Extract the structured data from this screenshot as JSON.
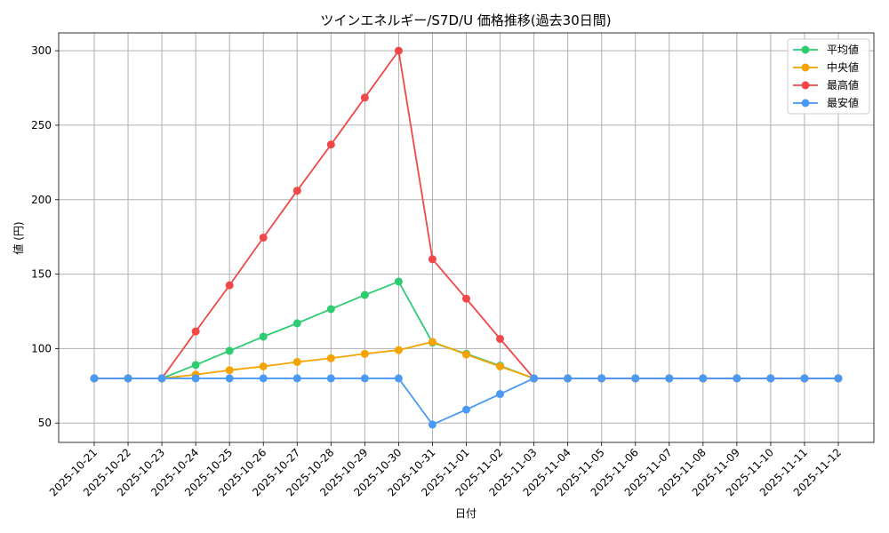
{
  "chart_data": {
    "type": "line",
    "title": "ツインエネルギー/S7D/U 価格推移(過去30日間)",
    "xlabel": "日付",
    "ylabel": "値 (円)",
    "ylim": [
      37,
      312
    ],
    "yticks": [
      50,
      100,
      150,
      200,
      250,
      300
    ],
    "grid": true,
    "legend_position": "top-right",
    "categories": [
      "2025-10-21",
      "2025-10-22",
      "2025-10-23",
      "2025-10-24",
      "2025-10-25",
      "2025-10-26",
      "2025-10-27",
      "2025-10-28",
      "2025-10-29",
      "2025-10-30",
      "2025-10-31",
      "2025-11-01",
      "2025-11-02",
      "2025-11-03",
      "2025-11-04",
      "2025-11-05",
      "2025-11-06",
      "2025-11-07",
      "2025-11-08",
      "2025-11-09",
      "2025-11-10",
      "2025-11-11",
      "2025-11-12"
    ],
    "series": [
      {
        "name": "平均値",
        "color": "#2ecc71",
        "values": [
          80,
          80,
          80,
          89,
          98.5,
          108,
          117,
          126.5,
          136,
          145,
          104,
          96.5,
          88.5,
          80,
          80,
          80,
          80,
          80,
          80,
          80,
          80,
          80,
          80
        ]
      },
      {
        "name": "中央値",
        "color": "#f5a300",
        "values": [
          80,
          80,
          80,
          82.5,
          85.5,
          88,
          91,
          93.5,
          96.5,
          99,
          104.5,
          96,
          88,
          80,
          80,
          80,
          80,
          80,
          80,
          80,
          80,
          80,
          80
        ]
      },
      {
        "name": "最高値",
        "color": "#f04848",
        "values": [
          80,
          80,
          80,
          111.5,
          142.5,
          174.5,
          206,
          237,
          268.5,
          300,
          160,
          133.5,
          106.5,
          80,
          80,
          80,
          80,
          80,
          80,
          80,
          80,
          80,
          80
        ]
      },
      {
        "name": "最安値",
        "color": "#4a9af5",
        "values": [
          80,
          80,
          80,
          80,
          80,
          80,
          80,
          80,
          80,
          80,
          49,
          59,
          69.5,
          80,
          80,
          80,
          80,
          80,
          80,
          80,
          80,
          80,
          80
        ]
      }
    ]
  }
}
